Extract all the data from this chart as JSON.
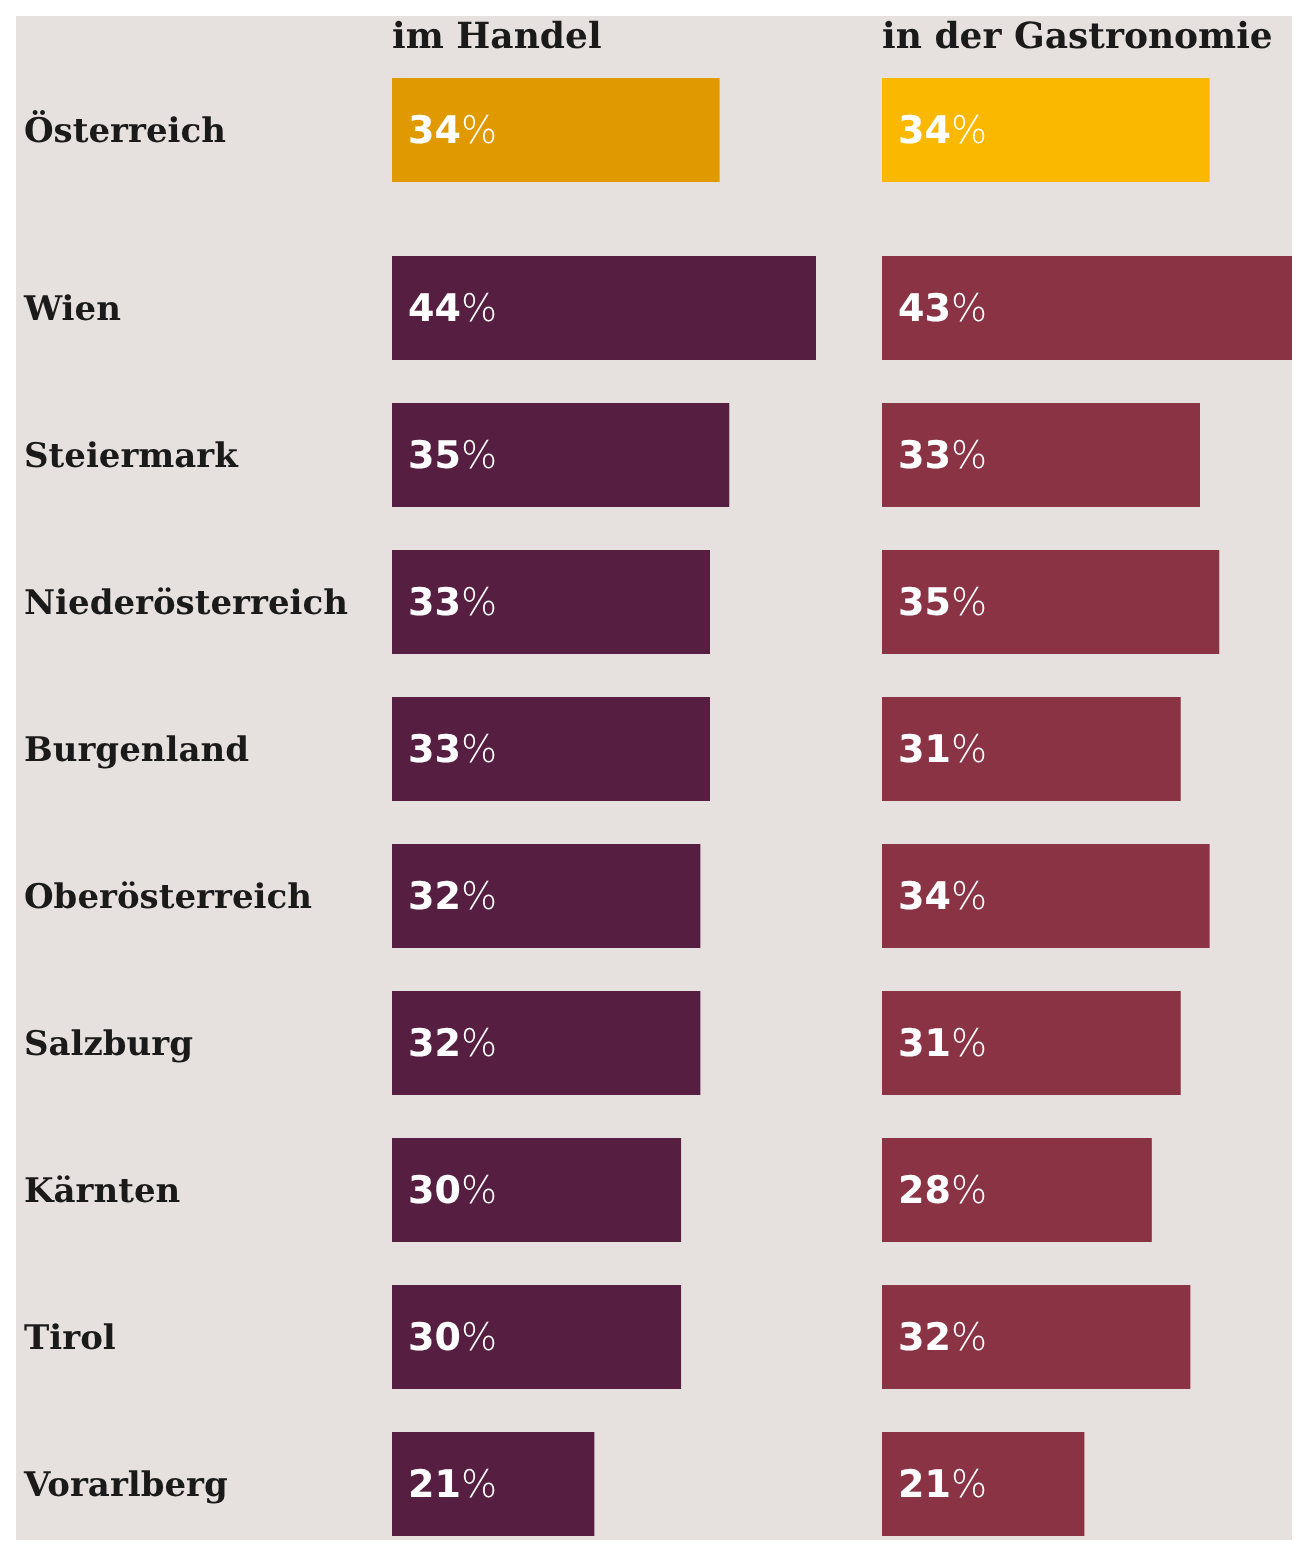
{
  "chart_data": [
    {
      "type": "bar",
      "orientation": "horizontal",
      "title": "im Handel",
      "categories": [
        "Österreich",
        "Wien",
        "Steiermark",
        "Niederösterreich",
        "Burgenland",
        "Oberösterreich",
        "Salzburg",
        "Kärnten",
        "Tirol",
        "Vorarlberg"
      ],
      "values": [
        34,
        44,
        35,
        33,
        33,
        32,
        32,
        30,
        30,
        21
      ],
      "value_labels": [
        "34%",
        "44%",
        "35%",
        "33%",
        "33%",
        "32%",
        "32%",
        "30%",
        "30%",
        "21%"
      ],
      "colors": [
        "#e09a00",
        "#561e40",
        "#561e40",
        "#561e40",
        "#561e40",
        "#561e40",
        "#561e40",
        "#561e40",
        "#561e40",
        "#561e40"
      ]
    },
    {
      "type": "bar",
      "orientation": "horizontal",
      "title": "in der Gastronomie",
      "categories": [
        null,
        null,
        null,
        null,
        null,
        null,
        null,
        null,
        null,
        null
      ],
      "values": [
        34,
        43,
        33,
        35,
        31,
        34,
        31,
        28,
        32,
        21
      ],
      "value_labels": [
        "34%",
        "43%",
        "33%",
        "35%",
        "31%",
        "34%",
        "31%",
        "28%",
        "32%",
        "21%"
      ],
      "colors": [
        "#fbb800",
        "#8a3345",
        "#8a3345",
        "#8a3345",
        "#8a3345",
        "#8a3345",
        "#8a3345",
        "#8a3345",
        "#8a3345",
        "#8a3345"
      ]
    }
  ]
}
